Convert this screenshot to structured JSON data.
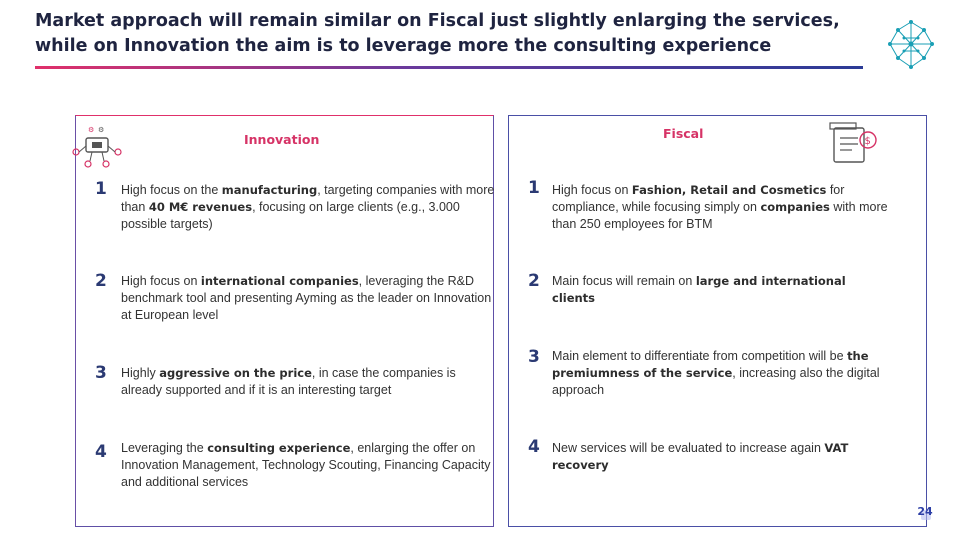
{
  "title": "Market approach will remain similar on Fiscal just slightly enlarging the services, while on Innovation the aim is to leverage more the consulting experience",
  "innovation": {
    "heading": "Innovation",
    "items": [
      {
        "num": "1",
        "parts": [
          "High focus on the ",
          "manufacturing",
          ", targeting companies with more than ",
          "40 M€ revenues",
          ", focusing on large clients (e.g., 3.000 possible targets)"
        ]
      },
      {
        "num": "2",
        "parts": [
          "High focus on ",
          "international companies",
          ", leveraging the R&D benchmark tool and presenting Ayming as the leader on Innovation at European level"
        ]
      },
      {
        "num": "3",
        "parts": [
          "Highly ",
          "aggressive on the price",
          ", in case the companies is already supported and if it is an interesting target"
        ]
      },
      {
        "num": "4",
        "parts": [
          "Leveraging the ",
          "consulting experience",
          ", enlarging the offer on Innovation Management, Technology Scouting, Financing Capacity and additional services"
        ]
      }
    ]
  },
  "fiscal": {
    "heading": "Fiscal",
    "items": [
      {
        "num": "1",
        "parts": [
          "High focus on ",
          "Fashion, Retail and Cosmetics",
          " for compliance, while focusing simply on ",
          "companies",
          " with more than 250 employees for BTM"
        ]
      },
      {
        "num": "2",
        "parts": [
          "Main focus will remain on ",
          "large and international clients",
          ""
        ]
      },
      {
        "num": "3",
        "parts": [
          "Main element to differentiate from competition will be ",
          "the premiumness of the service",
          ", increasing also the digital approach"
        ]
      },
      {
        "num": "4",
        "parts": [
          "New services will be evaluated to increase again ",
          "VAT recovery",
          ""
        ]
      }
    ]
  },
  "page_number": "24",
  "colors": {
    "title": "#1f2440",
    "accent": "#d63366",
    "frame": "#5e4fa6",
    "number": "#2b3a73"
  }
}
